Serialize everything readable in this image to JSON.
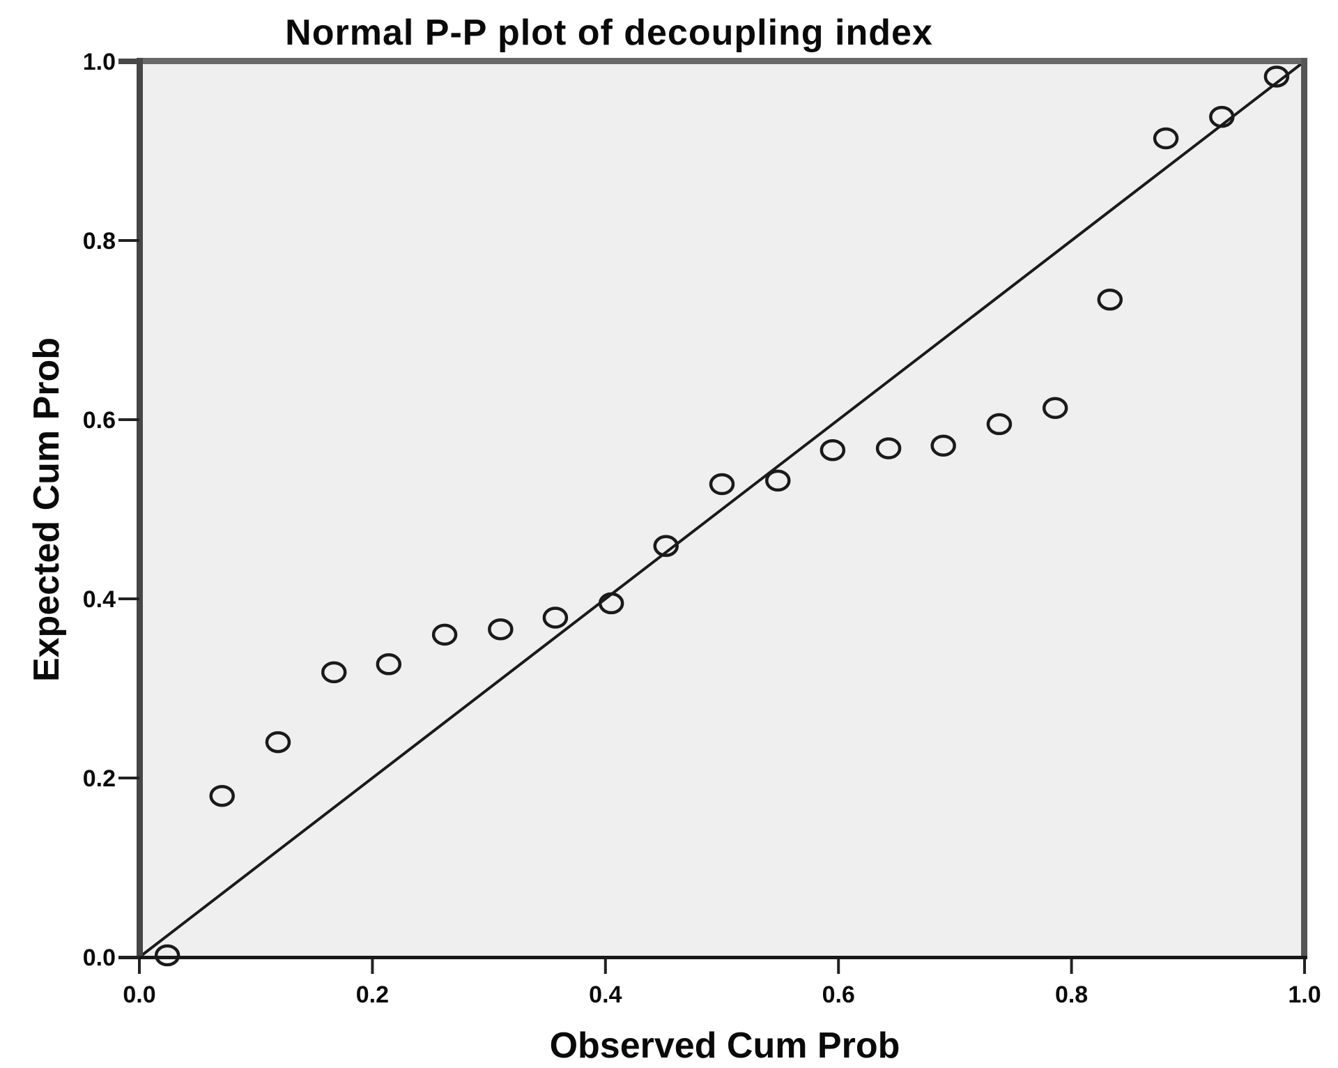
{
  "chart_data": {
    "type": "scatter",
    "title": "Normal P-P plot of decoupling index",
    "xlabel": "Observed Cum Prob",
    "ylabel": "Expected Cum Prob",
    "xlim": [
      0.0,
      1.0
    ],
    "ylim": [
      0.0,
      1.0
    ],
    "x_tick_values": [
      0.0,
      0.2,
      0.4,
      0.6,
      0.8,
      1.0
    ],
    "x_tick_labels": [
      "0.0",
      "0.2",
      "0.4",
      "0.6",
      "0.8",
      "1.0"
    ],
    "y_tick_values": [
      0.0,
      0.2,
      0.4,
      0.6,
      0.8,
      1.0
    ],
    "y_tick_labels": [
      "0.0",
      "0.2",
      "0.4",
      "0.6",
      "0.8",
      "1.0"
    ],
    "grid": false,
    "legend": false,
    "plot_background": "#efefef",
    "reference_line": {
      "from": [
        0.0,
        0.0
      ],
      "to": [
        1.0,
        1.0
      ],
      "color": "#1a1a1a"
    },
    "series": [
      {
        "name": "observed-vs-expected",
        "marker": "open-circle",
        "marker_color": "#1a1a1a",
        "points": [
          [
            0.024,
            0.002
          ],
          [
            0.071,
            0.18
          ],
          [
            0.119,
            0.24
          ],
          [
            0.167,
            0.318
          ],
          [
            0.214,
            0.327
          ],
          [
            0.262,
            0.36
          ],
          [
            0.31,
            0.366
          ],
          [
            0.357,
            0.379
          ],
          [
            0.405,
            0.395
          ],
          [
            0.452,
            0.459
          ],
          [
            0.5,
            0.528
          ],
          [
            0.548,
            0.532
          ],
          [
            0.595,
            0.566
          ],
          [
            0.643,
            0.568
          ],
          [
            0.69,
            0.571
          ],
          [
            0.738,
            0.595
          ],
          [
            0.786,
            0.613
          ],
          [
            0.833,
            0.734
          ],
          [
            0.881,
            0.914
          ],
          [
            0.929,
            0.938
          ],
          [
            0.976,
            0.983
          ]
        ]
      }
    ],
    "colors": {
      "frame_top": "#686868",
      "frame_right": "#565656",
      "frame_left": "#474747",
      "axis_bottom": "#191919",
      "tick": "#222222",
      "text": "#0a0a0a"
    }
  }
}
